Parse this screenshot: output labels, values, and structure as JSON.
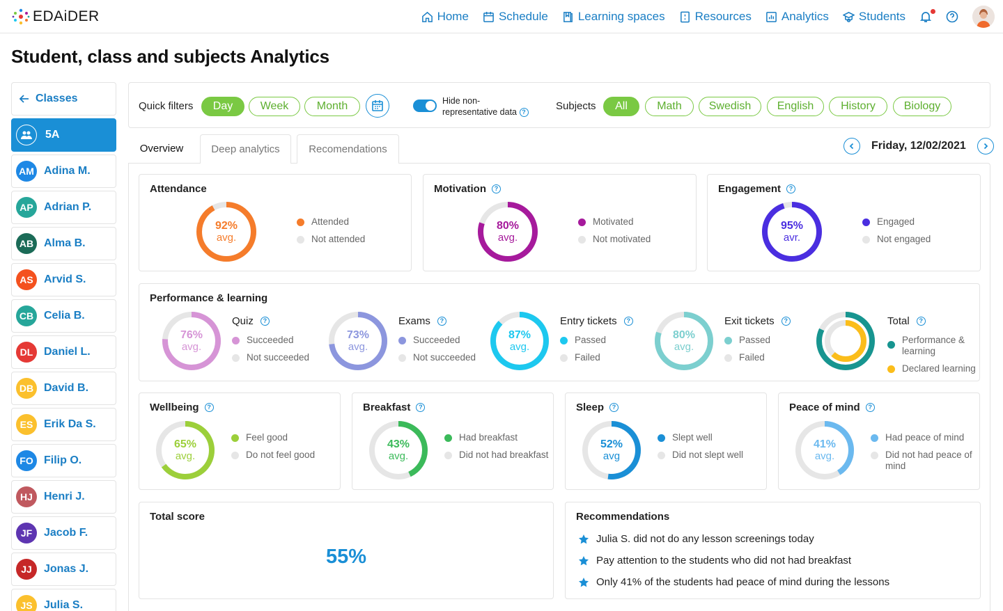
{
  "brand": {
    "name": "EDAiDER"
  },
  "nav": [
    {
      "label": "Home",
      "icon": "home-icon"
    },
    {
      "label": "Schedule",
      "icon": "calendar-icon"
    },
    {
      "label": "Learning spaces",
      "icon": "book-icon"
    },
    {
      "label": "Resources",
      "icon": "resources-icon"
    },
    {
      "label": "Analytics",
      "icon": "analytics-icon"
    },
    {
      "label": "Students",
      "icon": "students-icon"
    }
  ],
  "page_title": "Student, class and subjects Analytics",
  "sidebar": {
    "back_label": "Classes",
    "active_class": "5A",
    "students": [
      {
        "initials": "AM",
        "name": "Adina M.",
        "color": "#1e88e5"
      },
      {
        "initials": "AP",
        "name": "Adrian P.",
        "color": "#26a69a"
      },
      {
        "initials": "AB",
        "name": "Alma B.",
        "color": "#1b6b57"
      },
      {
        "initials": "AS",
        "name": "Arvid S.",
        "color": "#f4511e"
      },
      {
        "initials": "CB",
        "name": "Celia B.",
        "color": "#26a69a"
      },
      {
        "initials": "DL",
        "name": "Daniel L.",
        "color": "#e53935"
      },
      {
        "initials": "DB",
        "name": "David B.",
        "color": "#fbc02d"
      },
      {
        "initials": "ES",
        "name": "Erik Da S.",
        "color": "#fbc02d"
      },
      {
        "initials": "FO",
        "name": "Filip O.",
        "color": "#1e88e5"
      },
      {
        "initials": "HJ",
        "name": "Henri J.",
        "color": "#c0595f"
      },
      {
        "initials": "JF",
        "name": "Jacob F.",
        "color": "#5e35b1"
      },
      {
        "initials": "JJ",
        "name": "Jonas J.",
        "color": "#c62828"
      },
      {
        "initials": "JS",
        "name": "Julia S.",
        "color": "#fbc02d"
      }
    ]
  },
  "filters": {
    "quick_label": "Quick filters",
    "quick": [
      "Day",
      "Week",
      "Month"
    ],
    "quick_active": "Day",
    "toggle_label": "Hide non-representative data",
    "subjects_label": "Subjects",
    "subjects": [
      "All",
      "Math",
      "Swedish",
      "English",
      "History",
      "Biology"
    ],
    "subjects_active": "All"
  },
  "tabs": [
    "Overview",
    "Deep analytics",
    "Recomendations"
  ],
  "date": "Friday, 12/02/2021",
  "attendance": {
    "title": "Attendance",
    "value": 92,
    "label": "92%",
    "sub": "avg.",
    "color": "#f57c2b",
    "text_color": "#f57c2b",
    "legend": [
      "Attended",
      "Not attended"
    ]
  },
  "motivation": {
    "title": "Motivation",
    "value": 80,
    "label": "80%",
    "sub": "avg.",
    "color": "#a61a9c",
    "text_color": "#a61a9c",
    "legend": [
      "Motivated",
      "Not motivated"
    ]
  },
  "engagement": {
    "title": "Engagement",
    "value": 95,
    "label": "95%",
    "sub": "avr.",
    "color": "#4a2ee0",
    "text_color": "#4a2ee0",
    "legend": [
      "Engaged",
      "Not engaged"
    ]
  },
  "performance": {
    "title": "Performance & learning",
    "items": [
      {
        "title": "Quiz",
        "value": 76,
        "label": "76%",
        "sub": "avg.",
        "color": "#d694d6",
        "legend": [
          "Succeeded",
          "Not succeeded"
        ]
      },
      {
        "title": "Exams",
        "value": 73,
        "label": "73%",
        "sub": "avg.",
        "color": "#8c96de",
        "legend": [
          "Succeeded",
          "Not succeeded"
        ]
      },
      {
        "title": "Entry tickets",
        "value": 87,
        "label": "87%",
        "sub": "avg.",
        "color": "#1dc8ef",
        "legend": [
          "Passed",
          "Failed"
        ]
      },
      {
        "title": "Exit tickets",
        "value": 80,
        "label": "80%",
        "sub": "avg.",
        "color": "#7ccfcf",
        "legend": [
          "Passed",
          "Failed"
        ]
      }
    ],
    "total": {
      "title": "Total",
      "outer_value": 82,
      "inner_value": 62,
      "outer_color": "#179590",
      "inner_color": "#fbbd1a",
      "legend": [
        "Performance & learning",
        "Declared learning"
      ]
    }
  },
  "wellbeing": {
    "title": "Wellbeing",
    "value": 65,
    "label": "65%",
    "sub": "avg.",
    "color": "#9ccf3a",
    "legend": [
      "Feel good",
      "Do not feel good"
    ]
  },
  "breakfast": {
    "title": "Breakfast",
    "value": 43,
    "label": "43%",
    "sub": "avg.",
    "color": "#3bba5a",
    "legend": [
      "Had breakfast",
      "Did not had breakfast"
    ]
  },
  "sleep": {
    "title": "Sleep",
    "value": 52,
    "label": "52%",
    "sub": "avg",
    "color": "#1a8fd6",
    "legend": [
      "Slept well",
      "Did not slept well"
    ]
  },
  "peace": {
    "title": "Peace of mind",
    "value": 41,
    "label": "41%",
    "sub": "avg.",
    "color": "#6bb9ef",
    "legend": [
      "Had peace of mind",
      "Did not had peace of mind"
    ]
  },
  "total_score": {
    "title": "Total score",
    "value": "55%"
  },
  "recommendations": {
    "title": "Recommendations",
    "items": [
      "Julia S. did not do any lesson screenings today",
      "Pay attention to the students who did not had breakfast",
      "Only 41% of the students had peace of mind during the lessons"
    ]
  },
  "colors": {
    "accent": "#1a8fd6",
    "green": "#7ac943",
    "gray_ring": "#e6e6e6"
  }
}
